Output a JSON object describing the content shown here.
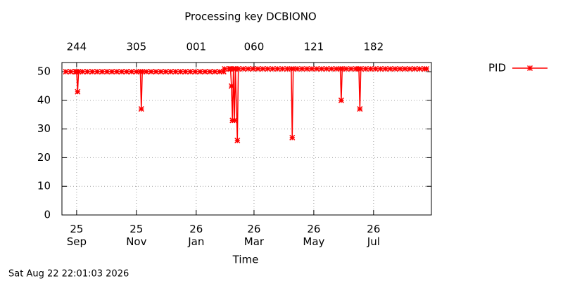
{
  "chart_data": {
    "type": "line",
    "title": "Processing key DCBIONO",
    "xlabel": "Time",
    "timestamp": "Sat Aug 22 22:01:03 2026",
    "xlim": [
      -15,
      362
    ],
    "ylim": [
      0,
      53.2
    ],
    "yticks": [
      0,
      10,
      20,
      30,
      40,
      50
    ],
    "xticks": [
      {
        "value": 0,
        "label": "25\nSep"
      },
      {
        "value": 61,
        "label": "25\nNov"
      },
      {
        "value": 122,
        "label": "26\nJan"
      },
      {
        "value": 181,
        "label": "26\nMar"
      },
      {
        "value": 242,
        "label": "26\nMay"
      },
      {
        "value": 303,
        "label": "26\nJul"
      }
    ],
    "x2ticks": [
      {
        "value": 0,
        "label": "244"
      },
      {
        "value": 61,
        "label": "305"
      },
      {
        "value": 122,
        "label": "001"
      },
      {
        "value": 181,
        "label": "060"
      },
      {
        "value": 242,
        "label": "121"
      },
      {
        "value": 303,
        "label": "182"
      }
    ],
    "grid": true,
    "legend": "top-right",
    "series": [
      {
        "name": "PID",
        "color": "#ff0000",
        "x": [
          -11,
          -6,
          -1,
          0,
          1,
          2,
          6,
          11,
          16,
          21,
          26,
          31,
          36,
          41,
          46,
          51,
          56,
          61,
          65,
          66,
          67,
          71,
          76,
          81,
          86,
          91,
          96,
          101,
          106,
          111,
          116,
          121,
          126,
          131,
          136,
          141,
          146,
          150,
          151,
          156,
          157,
          158,
          159,
          160,
          161,
          162,
          164,
          165,
          170,
          175,
          180,
          185,
          190,
          195,
          200,
          205,
          210,
          215,
          219,
          220,
          221,
          225,
          230,
          235,
          240,
          245,
          250,
          255,
          260,
          265,
          269,
          270,
          271,
          275,
          280,
          285,
          288,
          289,
          290,
          295,
          300,
          305,
          310,
          315,
          320,
          325,
          330,
          335,
          340,
          345,
          350,
          355,
          357
        ],
        "values": [
          50,
          50,
          50,
          50,
          43,
          50,
          50,
          50,
          50,
          50,
          50,
          50,
          50,
          50,
          50,
          50,
          50,
          50,
          50,
          37,
          50,
          50,
          50,
          50,
          50,
          50,
          50,
          50,
          50,
          50,
          50,
          50,
          50,
          50,
          50,
          50,
          50,
          50,
          51,
          51,
          51,
          45,
          33,
          51,
          33,
          51,
          26,
          51,
          51,
          51,
          51,
          51,
          51,
          51,
          51,
          51,
          51,
          51,
          51,
          27,
          51,
          51,
          51,
          51,
          51,
          51,
          51,
          51,
          51,
          51,
          51,
          40,
          51,
          51,
          51,
          51,
          51,
          37,
          51,
          51,
          51,
          51,
          51,
          51,
          51,
          51,
          51,
          51,
          51,
          51,
          51,
          51,
          51
        ]
      }
    ]
  }
}
